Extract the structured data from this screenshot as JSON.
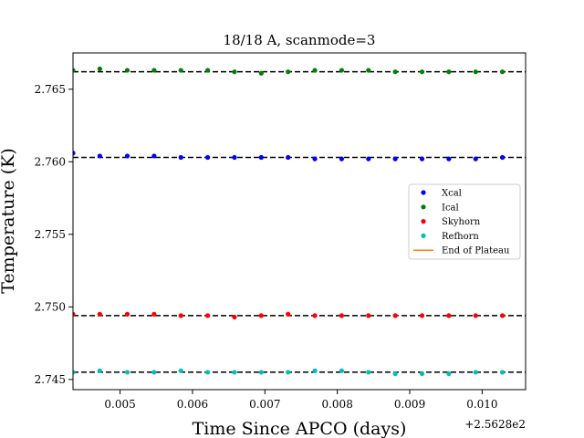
{
  "chart_data": {
    "type": "scatter",
    "title": "18/18 A, scanmode=3",
    "xlabel": "Time Since APCO (days)",
    "ylabel": "Temperature (K)",
    "x_offset_label": "+2.5628e2",
    "xlim": [
      0.00435,
      0.0106
    ],
    "ylim": [
      2.7443,
      2.7675
    ],
    "xticks": [
      0.005,
      0.006,
      0.007,
      0.008,
      0.009,
      0.01
    ],
    "xtick_labels": [
      "0.005",
      "0.006",
      "0.007",
      "0.008",
      "0.009",
      "0.010"
    ],
    "yticks": [
      2.745,
      2.75,
      2.755,
      2.76,
      2.765
    ],
    "ytick_labels": [
      "2.745",
      "2.750",
      "2.755",
      "2.760",
      "2.765"
    ],
    "x": [
      0.00435,
      0.00472,
      0.0051,
      0.00547,
      0.00584,
      0.00621,
      0.00658,
      0.00695,
      0.00732,
      0.00769,
      0.00806,
      0.00843,
      0.0088,
      0.00917,
      0.00954,
      0.00991,
      0.01028,
      0.01065
    ],
    "series": [
      {
        "name": "Xcal",
        "color": "#0000ff",
        "plateau": 2.7603,
        "values": [
          2.7606,
          2.7604,
          2.7604,
          2.7604,
          2.7603,
          2.7603,
          2.7603,
          2.7603,
          2.7603,
          2.7602,
          2.7602,
          2.7602,
          2.7602,
          2.7602,
          2.7602,
          2.7602,
          2.7603,
          2.7603
        ]
      },
      {
        "name": "Ical",
        "color": "#008000",
        "plateau": 2.7662,
        "values": [
          2.7663,
          2.7664,
          2.7663,
          2.7663,
          2.7663,
          2.7663,
          2.7662,
          2.7661,
          2.7662,
          2.7663,
          2.7663,
          2.7663,
          2.7662,
          2.7662,
          2.7662,
          2.7662,
          2.7662,
          2.7663
        ]
      },
      {
        "name": "Skyhorn",
        "color": "#ff0000",
        "plateau": 2.7494,
        "values": [
          2.7495,
          2.7495,
          2.7495,
          2.7495,
          2.7494,
          2.7494,
          2.7493,
          2.7494,
          2.7495,
          2.7494,
          2.7494,
          2.7494,
          2.7494,
          2.7494,
          2.7494,
          2.7494,
          2.7494,
          2.7494
        ]
      },
      {
        "name": "Refhorn",
        "color": "#00bfbf",
        "plateau": 2.7455,
        "values": [
          2.7455,
          2.7456,
          2.7455,
          2.7455,
          2.7456,
          2.7455,
          2.7455,
          2.7455,
          2.7455,
          2.7456,
          2.7456,
          2.7455,
          2.7454,
          2.7454,
          2.7454,
          2.7455,
          2.7455,
          2.7455
        ]
      }
    ],
    "legend": {
      "placement": "center-right",
      "entries": [
        {
          "label": "Xcal",
          "marker": "dot",
          "color": "#0000ff"
        },
        {
          "label": "Ical",
          "marker": "dot",
          "color": "#008000"
        },
        {
          "label": "Skyhorn",
          "marker": "dot",
          "color": "#ff0000"
        },
        {
          "label": "Refhorn",
          "marker": "dot",
          "color": "#00bfbf"
        },
        {
          "label": "End of Plateau",
          "marker": "line",
          "color": "#ff7f0e"
        }
      ]
    },
    "grid": false
  }
}
